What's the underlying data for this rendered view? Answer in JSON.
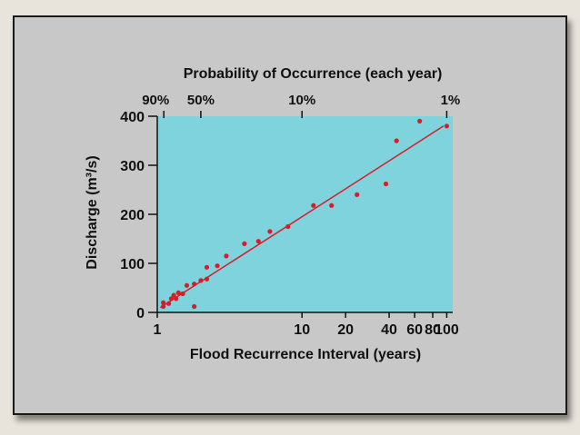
{
  "chart_data": {
    "type": "scatter",
    "top_title": "Probability of Occurrence (each year)",
    "top_ticks": [
      "90%",
      "50%",
      "10%",
      "1%"
    ],
    "top_tick_x": [
      1.11,
      2,
      10,
      100
    ],
    "xlabel": "Flood Recurrence Interval (years)",
    "ylabel": "Discharge (m³/s)",
    "x_scale": "log",
    "xlim": [
      1,
      110
    ],
    "ylim": [
      0,
      400
    ],
    "x_ticks": [
      1,
      10,
      20,
      40,
      60,
      80,
      100
    ],
    "y_ticks": [
      0,
      100,
      200,
      300,
      400
    ],
    "colors": {
      "plot_bg": "#7fd3dc",
      "points": "#d91c2a",
      "fit_line": "#d91c2a"
    },
    "fit_line": {
      "x": [
        1.05,
        95
      ],
      "y": [
        10,
        380
      ]
    },
    "points": [
      {
        "x": 1.1,
        "y": 20
      },
      {
        "x": 1.1,
        "y": 12
      },
      {
        "x": 1.2,
        "y": 18
      },
      {
        "x": 1.25,
        "y": 28
      },
      {
        "x": 1.3,
        "y": 35
      },
      {
        "x": 1.35,
        "y": 28
      },
      {
        "x": 1.4,
        "y": 40
      },
      {
        "x": 1.5,
        "y": 38
      },
      {
        "x": 1.6,
        "y": 55
      },
      {
        "x": 1.8,
        "y": 58
      },
      {
        "x": 1.8,
        "y": 12
      },
      {
        "x": 2.0,
        "y": 65
      },
      {
        "x": 2.2,
        "y": 92
      },
      {
        "x": 2.2,
        "y": 68
      },
      {
        "x": 2.6,
        "y": 95
      },
      {
        "x": 3.0,
        "y": 115
      },
      {
        "x": 4.0,
        "y": 140
      },
      {
        "x": 5.0,
        "y": 145
      },
      {
        "x": 6.0,
        "y": 165
      },
      {
        "x": 8.0,
        "y": 175
      },
      {
        "x": 12.0,
        "y": 218
      },
      {
        "x": 16.0,
        "y": 218
      },
      {
        "x": 24.0,
        "y": 240
      },
      {
        "x": 38.0,
        "y": 262
      },
      {
        "x": 45.0,
        "y": 350
      },
      {
        "x": 65.0,
        "y": 390
      },
      {
        "x": 100.0,
        "y": 380
      }
    ]
  }
}
